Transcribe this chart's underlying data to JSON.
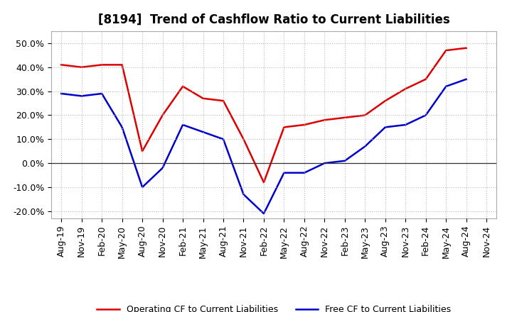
{
  "title": "[8194]  Trend of Cashflow Ratio to Current Liabilities",
  "x_labels": [
    "Aug-19",
    "Nov-19",
    "Feb-20",
    "May-20",
    "Aug-20",
    "Nov-20",
    "Feb-21",
    "May-21",
    "Aug-21",
    "Nov-21",
    "Feb-22",
    "May-22",
    "Aug-22",
    "Nov-22",
    "Feb-23",
    "May-23",
    "Aug-23",
    "Nov-23",
    "Feb-24",
    "May-24",
    "Aug-24",
    "Nov-24"
  ],
  "operating_cf": [
    0.41,
    0.4,
    0.41,
    0.41,
    0.05,
    0.2,
    0.32,
    0.27,
    0.26,
    0.1,
    -0.08,
    0.15,
    0.16,
    0.18,
    0.19,
    0.2,
    0.26,
    0.31,
    0.35,
    0.47,
    0.48,
    null
  ],
  "free_cf": [
    0.29,
    0.28,
    0.29,
    0.15,
    -0.1,
    -0.02,
    0.16,
    0.13,
    0.1,
    -0.13,
    -0.21,
    -0.04,
    -0.04,
    0.0,
    0.01,
    0.07,
    0.15,
    0.16,
    0.2,
    0.32,
    0.35,
    null
  ],
  "ylim": [
    -0.23,
    0.55
  ],
  "yticks": [
    -0.2,
    -0.1,
    0.0,
    0.1,
    0.2,
    0.3,
    0.4,
    0.5
  ],
  "operating_color": "#dd0000",
  "free_color": "#0000cc",
  "background_color": "#ffffff",
  "plot_bg_color": "#ffffff",
  "grid_color": "#bbbbbb",
  "legend_operating": "Operating CF to Current Liabilities",
  "legend_free": "Free CF to Current Liabilities",
  "title_fontsize": 12,
  "tick_fontsize": 9,
  "legend_fontsize": 9
}
